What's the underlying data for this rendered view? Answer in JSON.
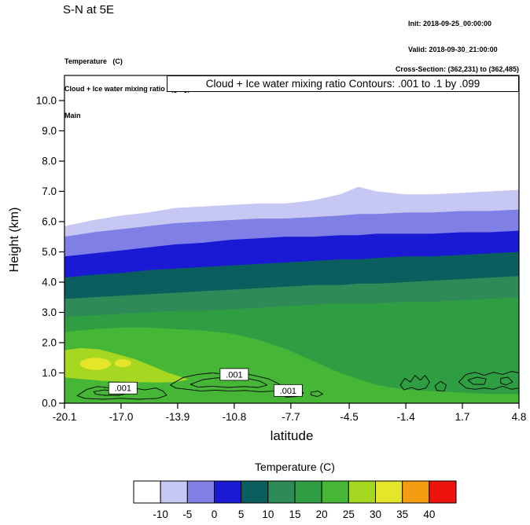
{
  "header": {
    "title": "S-N at 5E",
    "init_label": "Init: 2018-09-25_00:00:00",
    "valid_label": "Valid: 2018-09-30_21:00:00",
    "meta_lines": [
      "Temperature   (C)",
      "Cloud + Ice water mixing ratio   (g/kg)",
      "Main"
    ],
    "cross_section_label": "Cross-Section: (362,231) to (362,485)"
  },
  "chart_data": {
    "type": "heatmap",
    "subtype": "filled-contour-vertical-cross-section",
    "title": "Cloud + Ice water mixing ratio Contours: .001 to .1 by .099",
    "xlabel": "latitude",
    "ylabel": "Height (km)",
    "xlim": [
      -20.1,
      4.8
    ],
    "ylim": [
      0,
      10.83
    ],
    "grid": false,
    "x_ticks": [
      {
        "v": -20.1,
        "label": "-20.1"
      },
      {
        "v": -17.0,
        "label": "-17.0"
      },
      {
        "v": -13.9,
        "label": "-13.9"
      },
      {
        "v": -10.8,
        "label": "-10.8"
      },
      {
        "v": -7.7,
        "label": "-7.7"
      },
      {
        "v": -4.5,
        "label": "-4.5"
      },
      {
        "v": -1.4,
        "label": "-1.4"
      },
      {
        "v": 1.7,
        "label": "1.7"
      },
      {
        "v": 4.8,
        "label": "4.8"
      }
    ],
    "y_ticks": [
      {
        "v": 0,
        "label": "0.0"
      },
      {
        "v": 1,
        "label": "1.0"
      },
      {
        "v": 2,
        "label": "2.0"
      },
      {
        "v": 3,
        "label": "3.0"
      },
      {
        "v": 4,
        "label": "4.0"
      },
      {
        "v": 5,
        "label": "5.0"
      },
      {
        "v": 6,
        "label": "6.0"
      },
      {
        "v": 7,
        "label": "7.0"
      },
      {
        "v": 8,
        "label": "8.0"
      },
      {
        "v": 9,
        "label": "9.0"
      },
      {
        "v": 10,
        "label": "10.0"
      }
    ],
    "temperature_fill": {
      "units": "C",
      "x_lats": [
        -20.1,
        -18.5,
        -17,
        -15.5,
        -14,
        -12.5,
        -11,
        -9.5,
        -8,
        -6.5,
        -5,
        -4,
        -3,
        -1.4,
        0,
        1.7,
        3.2,
        4.8
      ],
      "base_band_palette_index": 7,
      "isotherms": [
        {
          "level_c": 20,
          "palette_index": 6,
          "heights_km": [
            2.35,
            2.45,
            2.5,
            2.5,
            2.45,
            2.4,
            2.3,
            2.1,
            1.8,
            1.4,
            1.0,
            0.8,
            0.6,
            0.45,
            0.4,
            0.35,
            0.3,
            0.3
          ]
        },
        {
          "level_c": 15,
          "palette_index": 5,
          "heights_km": [
            2.85,
            2.9,
            2.95,
            3.0,
            3.05,
            3.05,
            3.1,
            3.15,
            3.2,
            3.25,
            3.3,
            3.3,
            3.3,
            3.35,
            3.35,
            3.4,
            3.45,
            3.5
          ]
        },
        {
          "level_c": 10,
          "palette_index": 4,
          "heights_km": [
            3.45,
            3.5,
            3.55,
            3.6,
            3.65,
            3.7,
            3.75,
            3.8,
            3.85,
            3.9,
            3.9,
            3.95,
            3.95,
            4.0,
            4.05,
            4.1,
            4.15,
            4.2
          ]
        },
        {
          "level_c": 5,
          "palette_index": 3,
          "heights_km": [
            4.15,
            4.25,
            4.3,
            4.4,
            4.45,
            4.5,
            4.55,
            4.6,
            4.65,
            4.7,
            4.75,
            4.75,
            4.8,
            4.85,
            4.85,
            4.9,
            4.95,
            5.0
          ]
        },
        {
          "level_c": 0,
          "palette_index": 2,
          "heights_km": [
            4.85,
            4.95,
            5.05,
            5.15,
            5.25,
            5.3,
            5.4,
            5.45,
            5.5,
            5.5,
            5.55,
            5.55,
            5.6,
            5.6,
            5.6,
            5.65,
            5.65,
            5.7
          ]
        },
        {
          "level_c": -5,
          "palette_index": 1,
          "heights_km": [
            5.5,
            5.65,
            5.75,
            5.85,
            5.95,
            6.0,
            6.05,
            6.1,
            6.1,
            6.15,
            6.2,
            6.25,
            6.25,
            6.3,
            6.3,
            6.35,
            6.35,
            6.4
          ]
        },
        {
          "level_c": -10,
          "palette_index": 0,
          "heights_km": [
            5.85,
            6.05,
            6.2,
            6.3,
            6.45,
            6.5,
            6.55,
            6.6,
            6.6,
            6.7,
            6.9,
            7.15,
            7.0,
            6.9,
            6.9,
            6.95,
            7.0,
            7.05
          ]
        }
      ],
      "warm_pockets": [
        {
          "level_c": 25,
          "palette_index": 8,
          "points": [
            [
              -20.1,
              1.75
            ],
            [
              -19.2,
              1.82
            ],
            [
              -18.2,
              1.78
            ],
            [
              -17.2,
              1.62
            ],
            [
              -16.2,
              1.45
            ],
            [
              -15.2,
              1.2
            ],
            [
              -14.4,
              1.0
            ],
            [
              -13.6,
              0.85
            ],
            [
              -13.3,
              0.78
            ],
            [
              -14.0,
              0.7
            ],
            [
              -15.0,
              0.68
            ],
            [
              -16.5,
              0.7
            ],
            [
              -18.0,
              0.74
            ],
            [
              -19.2,
              0.8
            ],
            [
              -20.1,
              0.85
            ]
          ]
        }
      ],
      "warm_cores": [
        {
          "level_c": 30,
          "palette_index": 9,
          "lat": -18.4,
          "km": 1.3,
          "rlat": 0.85,
          "rkm": 0.2
        },
        {
          "level_c": 30,
          "palette_index": 9,
          "lat": -16.9,
          "km": 1.32,
          "rlat": 0.45,
          "rkm": 0.13
        }
      ]
    },
    "cloud_contours": {
      "label_text": ".001",
      "contour_min": 0.001,
      "contour_max": 0.1,
      "contour_interval": 0.099,
      "labels": [
        {
          "lat": -16.9,
          "km": 0.5
        },
        {
          "lat": -10.8,
          "km": 0.95
        },
        {
          "lat": -7.85,
          "km": 0.42
        }
      ],
      "paths": [
        [
          [
            -19.4,
            0.25
          ],
          [
            -18.9,
            0.45
          ],
          [
            -18.3,
            0.55
          ],
          [
            -17.6,
            0.5
          ],
          [
            -17.0,
            0.56
          ],
          [
            -16.3,
            0.5
          ],
          [
            -15.7,
            0.44
          ],
          [
            -15.1,
            0.5
          ],
          [
            -14.7,
            0.4
          ],
          [
            -14.5,
            0.26
          ],
          [
            -15.0,
            0.16
          ],
          [
            -16.0,
            0.13
          ],
          [
            -17.0,
            0.16
          ],
          [
            -18.0,
            0.13
          ],
          [
            -19.0,
            0.16
          ]
        ],
        [
          [
            -18.5,
            0.38
          ],
          [
            -17.9,
            0.44
          ],
          [
            -17.3,
            0.38
          ],
          [
            -16.9,
            0.42
          ],
          [
            -16.5,
            0.34
          ],
          [
            -17.1,
            0.26
          ],
          [
            -17.9,
            0.26
          ],
          [
            -18.4,
            0.3
          ]
        ],
        [
          [
            -14.3,
            0.6
          ],
          [
            -13.6,
            0.85
          ],
          [
            -12.8,
            0.95
          ],
          [
            -12.0,
            1.0
          ],
          [
            -11.2,
            0.95
          ],
          [
            -10.4,
            1.0
          ],
          [
            -9.6,
            0.9
          ],
          [
            -8.9,
            0.8
          ],
          [
            -8.3,
            0.62
          ],
          [
            -8.1,
            0.48
          ],
          [
            -8.6,
            0.4
          ],
          [
            -9.4,
            0.38
          ],
          [
            -10.2,
            0.42
          ],
          [
            -11.0,
            0.4
          ],
          [
            -11.8,
            0.43
          ],
          [
            -12.6,
            0.4
          ],
          [
            -13.4,
            0.46
          ],
          [
            -14.0,
            0.5
          ]
        ],
        [
          [
            -13.2,
            0.62
          ],
          [
            -12.5,
            0.78
          ],
          [
            -11.7,
            0.84
          ],
          [
            -10.9,
            0.8
          ],
          [
            -10.1,
            0.82
          ],
          [
            -9.4,
            0.73
          ],
          [
            -9.0,
            0.6
          ],
          [
            -9.5,
            0.52
          ],
          [
            -10.3,
            0.55
          ],
          [
            -11.1,
            0.52
          ],
          [
            -12.0,
            0.56
          ],
          [
            -12.8,
            0.53
          ]
        ],
        [
          [
            -8.3,
            0.45
          ],
          [
            -7.8,
            0.52
          ],
          [
            -7.3,
            0.46
          ],
          [
            -7.0,
            0.34
          ],
          [
            -7.35,
            0.22
          ],
          [
            -7.95,
            0.2
          ],
          [
            -8.3,
            0.3
          ]
        ],
        [
          [
            -6.6,
            0.36
          ],
          [
            -6.2,
            0.4
          ],
          [
            -5.95,
            0.3
          ],
          [
            -6.25,
            0.22
          ],
          [
            -6.6,
            0.27
          ]
        ],
        [
          [
            -1.7,
            0.6
          ],
          [
            -1.45,
            0.82
          ],
          [
            -1.15,
            0.7
          ],
          [
            -0.9,
            0.92
          ],
          [
            -0.6,
            0.76
          ],
          [
            -0.35,
            0.92
          ],
          [
            -0.1,
            0.7
          ],
          [
            -0.3,
            0.5
          ],
          [
            -0.7,
            0.44
          ],
          [
            -1.1,
            0.52
          ],
          [
            -1.5,
            0.44
          ]
        ],
        [
          [
            0.2,
            0.58
          ],
          [
            0.5,
            0.72
          ],
          [
            0.82,
            0.6
          ],
          [
            0.7,
            0.4
          ],
          [
            0.3,
            0.42
          ]
        ],
        [
          [
            1.5,
            0.7
          ],
          [
            1.9,
            0.95
          ],
          [
            2.4,
            1.02
          ],
          [
            2.9,
            0.92
          ],
          [
            3.4,
            1.02
          ],
          [
            3.9,
            0.95
          ],
          [
            4.4,
            1.05
          ],
          [
            4.8,
            1.0
          ],
          [
            4.8,
            0.5
          ],
          [
            4.4,
            0.46
          ],
          [
            3.9,
            0.56
          ],
          [
            3.4,
            0.46
          ],
          [
            2.9,
            0.5
          ],
          [
            2.4,
            0.46
          ],
          [
            1.9,
            0.5
          ]
        ],
        [
          [
            2.0,
            0.76
          ],
          [
            2.5,
            0.86
          ],
          [
            3.0,
            0.8
          ],
          [
            2.9,
            0.62
          ],
          [
            2.3,
            0.62
          ]
        ],
        [
          [
            3.8,
            0.82
          ],
          [
            4.2,
            0.86
          ],
          [
            4.45,
            0.7
          ],
          [
            4.1,
            0.6
          ],
          [
            3.8,
            0.66
          ]
        ]
      ]
    }
  },
  "colorbar": {
    "title": "Temperature  (C)",
    "colors": [
      "#ffffff",
      "#c7c7f3",
      "#7f7fe6",
      "#1a1ad4",
      "#0b5e5e",
      "#2e8b57",
      "#2f9e43",
      "#46b637",
      "#a6d821",
      "#e5e52a",
      "#f49c12",
      "#ef1310"
    ],
    "tick_labels": [
      "-10",
      "-5",
      "0",
      "5",
      "10",
      "15",
      "20",
      "25",
      "30",
      "35",
      "40"
    ],
    "band_ranges_c": [
      "below -10",
      "-10 to -5",
      "-5 to 0",
      "0 to 5",
      "5 to 10",
      "10 to 15",
      "15 to 20",
      "20 to 25",
      "25 to 30",
      "30 to 35",
      "35 to 40",
      "above 40"
    ]
  }
}
